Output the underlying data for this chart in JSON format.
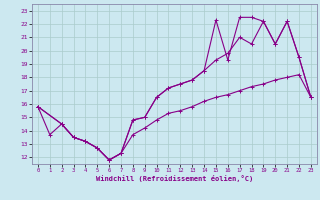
{
  "xlabel": "Windchill (Refroidissement éolien,°C)",
  "bg_color": "#cce8f0",
  "line_color": "#880088",
  "grid_color": "#aacccc",
  "xlim": [
    -0.5,
    23.5
  ],
  "ylim": [
    11.5,
    23.5
  ],
  "xticks": [
    0,
    1,
    2,
    3,
    4,
    5,
    6,
    7,
    8,
    9,
    10,
    11,
    12,
    13,
    14,
    15,
    16,
    17,
    18,
    19,
    20,
    21,
    22,
    23
  ],
  "yticks": [
    12,
    13,
    14,
    15,
    16,
    17,
    18,
    19,
    20,
    21,
    22,
    23
  ],
  "line1_x": [
    0,
    1,
    2,
    3,
    4,
    5,
    6,
    7,
    8,
    9,
    10,
    11,
    12,
    13,
    14,
    15,
    16,
    17,
    18,
    19,
    20,
    21,
    22,
    23
  ],
  "line1_y": [
    15.8,
    13.7,
    14.5,
    13.5,
    13.2,
    12.7,
    11.8,
    12.3,
    13.7,
    14.2,
    14.8,
    15.3,
    15.5,
    15.8,
    16.2,
    16.5,
    16.7,
    17.0,
    17.3,
    17.5,
    17.8,
    18.0,
    18.2,
    16.5
  ],
  "line2_x": [
    0,
    2,
    3,
    4,
    5,
    6,
    7,
    8,
    9,
    10,
    11,
    12,
    13,
    14,
    15,
    16,
    17,
    18,
    19,
    20,
    21,
    22,
    23
  ],
  "line2_y": [
    15.8,
    14.5,
    13.5,
    13.2,
    12.7,
    11.8,
    12.3,
    14.8,
    15.0,
    16.5,
    17.2,
    17.5,
    17.8,
    18.5,
    19.3,
    19.8,
    21.0,
    20.5,
    22.2,
    20.5,
    22.2,
    19.5,
    16.5
  ],
  "line3_x": [
    0,
    2,
    3,
    4,
    5,
    6,
    7,
    8,
    9,
    10,
    11,
    12,
    13,
    14,
    15,
    16,
    17,
    18,
    19,
    20,
    21,
    22,
    23
  ],
  "line3_y": [
    15.8,
    14.5,
    13.5,
    13.2,
    12.7,
    11.8,
    12.3,
    14.8,
    15.0,
    16.5,
    17.2,
    17.5,
    17.8,
    18.5,
    22.3,
    19.3,
    22.5,
    22.5,
    22.2,
    20.5,
    22.2,
    19.5,
    16.5
  ]
}
